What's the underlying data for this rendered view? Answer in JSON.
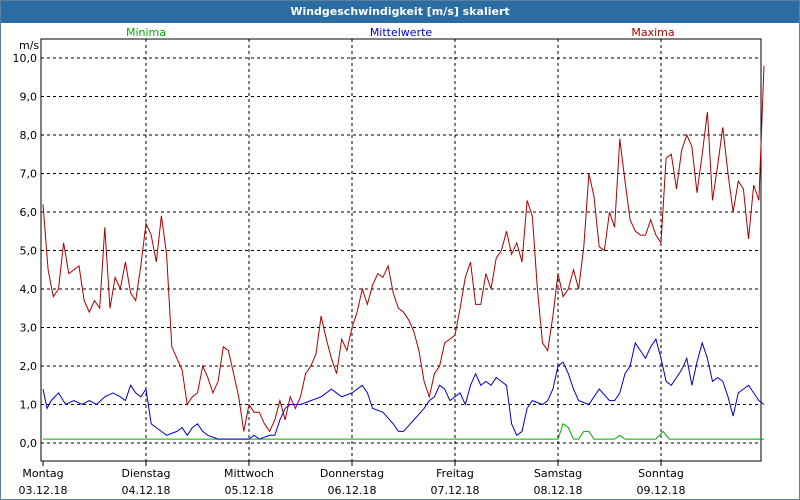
{
  "window": {
    "title": "Windgeschwindigkeit [m/s] skaliert"
  },
  "chart_data": {
    "type": "line",
    "ylabel": "m/s",
    "ylim": [
      0,
      10
    ],
    "yticks": [
      "0,0",
      "1,0",
      "2,0",
      "3,0",
      "4,0",
      "5,0",
      "6,0",
      "7,0",
      "8,0",
      "9,0",
      "10,0"
    ],
    "x_tick_labels": [
      {
        "day": "Montag",
        "date": "03.12.18"
      },
      {
        "day": "Dienstag",
        "date": "04.12.18"
      },
      {
        "day": "Mittwoch",
        "date": "05.12.18"
      },
      {
        "day": "Donnerstag",
        "date": "06.12.18"
      },
      {
        "day": "Freitag",
        "date": "07.12.18"
      },
      {
        "day": "Samstag",
        "date": "08.12.18"
      },
      {
        "day": "Sonntag",
        "date": "09.12.18"
      }
    ],
    "x_range_days": [
      0,
      7
    ],
    "grid": true,
    "legend_placement": "top",
    "series": [
      {
        "name": "Minima",
        "color": "#00aa00",
        "points": [
          [
            0,
            0.1
          ],
          [
            5.0,
            0.1
          ],
          [
            5.05,
            0.5
          ],
          [
            5.1,
            0.4
          ],
          [
            5.15,
            0.1
          ],
          [
            5.2,
            0.1
          ],
          [
            5.25,
            0.3
          ],
          [
            5.3,
            0.3
          ],
          [
            5.35,
            0.1
          ],
          [
            5.55,
            0.1
          ],
          [
            5.6,
            0.2
          ],
          [
            5.65,
            0.1
          ],
          [
            5.95,
            0.1
          ],
          [
            6.02,
            0.3
          ],
          [
            6.08,
            0.1
          ],
          [
            7,
            0.1
          ]
        ]
      },
      {
        "name": "Mittelwerte",
        "color": "#0000cc",
        "points": [
          [
            0,
            1.4
          ],
          [
            0.04,
            0.9
          ],
          [
            0.08,
            1.1
          ],
          [
            0.15,
            1.3
          ],
          [
            0.22,
            1.0
          ],
          [
            0.3,
            1.1
          ],
          [
            0.38,
            1.0
          ],
          [
            0.45,
            1.1
          ],
          [
            0.52,
            1.0
          ],
          [
            0.6,
            1.2
          ],
          [
            0.68,
            1.3
          ],
          [
            0.75,
            1.2
          ],
          [
            0.8,
            1.1
          ],
          [
            0.85,
            1.5
          ],
          [
            0.9,
            1.3
          ],
          [
            0.95,
            1.2
          ],
          [
            1.0,
            1.4
          ],
          [
            1.05,
            0.5
          ],
          [
            1.1,
            0.4
          ],
          [
            1.15,
            0.3
          ],
          [
            1.2,
            0.2
          ],
          [
            1.3,
            0.3
          ],
          [
            1.35,
            0.4
          ],
          [
            1.4,
            0.2
          ],
          [
            1.45,
            0.4
          ],
          [
            1.5,
            0.5
          ],
          [
            1.55,
            0.3
          ],
          [
            1.6,
            0.2
          ],
          [
            1.7,
            0.1
          ],
          [
            2.0,
            0.1
          ],
          [
            2.05,
            0.2
          ],
          [
            2.1,
            0.1
          ],
          [
            2.2,
            0.2
          ],
          [
            2.25,
            0.2
          ],
          [
            2.3,
            0.6
          ],
          [
            2.35,
            0.9
          ],
          [
            2.4,
            1.0
          ],
          [
            2.5,
            1.0
          ],
          [
            2.6,
            1.1
          ],
          [
            2.7,
            1.2
          ],
          [
            2.8,
            1.4
          ],
          [
            2.9,
            1.2
          ],
          [
            3.0,
            1.3
          ],
          [
            3.05,
            1.4
          ],
          [
            3.1,
            1.5
          ],
          [
            3.15,
            1.3
          ],
          [
            3.2,
            0.9
          ],
          [
            3.3,
            0.8
          ],
          [
            3.4,
            0.5
          ],
          [
            3.45,
            0.3
          ],
          [
            3.5,
            0.3
          ],
          [
            3.6,
            0.6
          ],
          [
            3.7,
            0.9
          ],
          [
            3.75,
            1.1
          ],
          [
            3.8,
            1.2
          ],
          [
            3.85,
            1.5
          ],
          [
            3.9,
            1.4
          ],
          [
            3.95,
            1.1
          ],
          [
            4.0,
            1.2
          ],
          [
            4.05,
            1.3
          ],
          [
            4.1,
            1.0
          ],
          [
            4.15,
            1.5
          ],
          [
            4.2,
            1.8
          ],
          [
            4.25,
            1.5
          ],
          [
            4.3,
            1.6
          ],
          [
            4.35,
            1.5
          ],
          [
            4.4,
            1.7
          ],
          [
            4.45,
            1.6
          ],
          [
            4.5,
            1.5
          ],
          [
            4.55,
            0.5
          ],
          [
            4.6,
            0.2
          ],
          [
            4.65,
            0.3
          ],
          [
            4.7,
            0.9
          ],
          [
            4.75,
            1.1
          ],
          [
            4.85,
            1.0
          ],
          [
            4.9,
            1.1
          ],
          [
            4.95,
            1.4
          ],
          [
            5.0,
            2.0
          ],
          [
            5.05,
            2.1
          ],
          [
            5.1,
            1.8
          ],
          [
            5.15,
            1.4
          ],
          [
            5.2,
            1.1
          ],
          [
            5.3,
            1.0
          ],
          [
            5.35,
            1.2
          ],
          [
            5.4,
            1.4
          ],
          [
            5.5,
            1.1
          ],
          [
            5.55,
            1.1
          ],
          [
            5.6,
            1.3
          ],
          [
            5.65,
            1.8
          ],
          [
            5.7,
            2.0
          ],
          [
            5.75,
            2.6
          ],
          [
            5.8,
            2.4
          ],
          [
            5.85,
            2.2
          ],
          [
            5.9,
            2.5
          ],
          [
            5.95,
            2.7
          ],
          [
            6.0,
            2.2
          ],
          [
            6.05,
            1.6
          ],
          [
            6.1,
            1.5
          ],
          [
            6.15,
            1.7
          ],
          [
            6.2,
            1.9
          ],
          [
            6.25,
            2.2
          ],
          [
            6.3,
            1.5
          ],
          [
            6.35,
            2.1
          ],
          [
            6.4,
            2.6
          ],
          [
            6.45,
            2.2
          ],
          [
            6.5,
            1.6
          ],
          [
            6.55,
            1.7
          ],
          [
            6.6,
            1.6
          ],
          [
            6.65,
            1.2
          ],
          [
            6.7,
            0.7
          ],
          [
            6.75,
            1.3
          ],
          [
            6.8,
            1.4
          ],
          [
            6.85,
            1.5
          ],
          [
            6.9,
            1.3
          ],
          [
            6.95,
            1.1
          ],
          [
            7.0,
            1.0
          ]
        ]
      },
      {
        "name": "Maxima",
        "color": "#aa0000",
        "points": [
          [
            0,
            6.2
          ],
          [
            0.05,
            4.5
          ],
          [
            0.1,
            3.8
          ],
          [
            0.15,
            4.0
          ],
          [
            0.2,
            5.2
          ],
          [
            0.25,
            4.4
          ],
          [
            0.3,
            4.5
          ],
          [
            0.35,
            4.6
          ],
          [
            0.4,
            3.7
          ],
          [
            0.45,
            3.4
          ],
          [
            0.5,
            3.7
          ],
          [
            0.55,
            3.5
          ],
          [
            0.6,
            5.6
          ],
          [
            0.65,
            3.5
          ],
          [
            0.7,
            4.3
          ],
          [
            0.75,
            4.0
          ],
          [
            0.8,
            4.7
          ],
          [
            0.85,
            3.9
          ],
          [
            0.9,
            3.7
          ],
          [
            0.95,
            4.6
          ],
          [
            1.0,
            5.7
          ],
          [
            1.05,
            5.4
          ],
          [
            1.1,
            4.7
          ],
          [
            1.15,
            5.9
          ],
          [
            1.2,
            4.9
          ],
          [
            1.25,
            2.5
          ],
          [
            1.3,
            2.2
          ],
          [
            1.35,
            1.9
          ],
          [
            1.4,
            1.0
          ],
          [
            1.45,
            1.2
          ],
          [
            1.5,
            1.3
          ],
          [
            1.55,
            2.0
          ],
          [
            1.6,
            1.7
          ],
          [
            1.65,
            1.3
          ],
          [
            1.7,
            1.6
          ],
          [
            1.75,
            2.5
          ],
          [
            1.8,
            2.4
          ],
          [
            1.85,
            1.8
          ],
          [
            1.9,
            1.2
          ],
          [
            1.95,
            0.3
          ],
          [
            2.0,
            1.0
          ],
          [
            2.05,
            0.8
          ],
          [
            2.1,
            0.8
          ],
          [
            2.15,
            0.5
          ],
          [
            2.2,
            0.3
          ],
          [
            2.25,
            0.6
          ],
          [
            2.3,
            1.1
          ],
          [
            2.35,
            0.6
          ],
          [
            2.4,
            1.2
          ],
          [
            2.45,
            0.9
          ],
          [
            2.5,
            1.2
          ],
          [
            2.55,
            1.8
          ],
          [
            2.6,
            2.0
          ],
          [
            2.65,
            2.3
          ],
          [
            2.7,
            3.3
          ],
          [
            2.75,
            2.7
          ],
          [
            2.8,
            2.2
          ],
          [
            2.85,
            1.8
          ],
          [
            2.9,
            2.7
          ],
          [
            2.95,
            2.4
          ],
          [
            3.0,
            3.0
          ],
          [
            3.05,
            3.4
          ],
          [
            3.1,
            4.0
          ],
          [
            3.15,
            3.6
          ],
          [
            3.2,
            4.1
          ],
          [
            3.25,
            4.4
          ],
          [
            3.3,
            4.3
          ],
          [
            3.35,
            4.6
          ],
          [
            3.4,
            3.9
          ],
          [
            3.45,
            3.5
          ],
          [
            3.5,
            3.4
          ],
          [
            3.55,
            3.2
          ],
          [
            3.6,
            2.9
          ],
          [
            3.65,
            2.4
          ],
          [
            3.7,
            1.6
          ],
          [
            3.75,
            1.2
          ],
          [
            3.8,
            1.8
          ],
          [
            3.85,
            2.0
          ],
          [
            3.9,
            2.6
          ],
          [
            3.95,
            2.7
          ],
          [
            4.0,
            2.8
          ],
          [
            4.05,
            3.5
          ],
          [
            4.1,
            4.3
          ],
          [
            4.15,
            4.7
          ],
          [
            4.2,
            3.6
          ],
          [
            4.25,
            3.6
          ],
          [
            4.3,
            4.4
          ],
          [
            4.35,
            4.0
          ],
          [
            4.4,
            4.8
          ],
          [
            4.45,
            5.0
          ],
          [
            4.5,
            5.5
          ],
          [
            4.55,
            4.9
          ],
          [
            4.6,
            5.2
          ],
          [
            4.65,
            4.7
          ],
          [
            4.7,
            6.3
          ],
          [
            4.75,
            5.9
          ],
          [
            4.8,
            4.0
          ],
          [
            4.85,
            2.6
          ],
          [
            4.9,
            2.4
          ],
          [
            4.95,
            3.3
          ],
          [
            5.0,
            4.4
          ],
          [
            5.05,
            3.8
          ],
          [
            5.1,
            4.0
          ],
          [
            5.15,
            4.5
          ],
          [
            5.2,
            4.0
          ],
          [
            5.25,
            5.1
          ],
          [
            5.3,
            7.0
          ],
          [
            5.35,
            6.4
          ],
          [
            5.4,
            5.1
          ],
          [
            5.45,
            5.0
          ],
          [
            5.5,
            6.0
          ],
          [
            5.55,
            5.6
          ],
          [
            5.6,
            7.9
          ],
          [
            5.65,
            6.8
          ],
          [
            5.7,
            5.8
          ],
          [
            5.75,
            5.5
          ],
          [
            5.8,
            5.4
          ],
          [
            5.85,
            5.4
          ],
          [
            5.9,
            5.8
          ],
          [
            5.95,
            5.4
          ],
          [
            6.0,
            5.2
          ],
          [
            6.05,
            7.4
          ],
          [
            6.1,
            7.5
          ],
          [
            6.15,
            6.6
          ],
          [
            6.2,
            7.6
          ],
          [
            6.25,
            8.0
          ],
          [
            6.3,
            7.7
          ],
          [
            6.35,
            6.5
          ],
          [
            6.4,
            7.5
          ],
          [
            6.45,
            8.6
          ],
          [
            6.5,
            6.3
          ],
          [
            6.55,
            7.2
          ],
          [
            6.6,
            8.2
          ],
          [
            6.65,
            7.0
          ],
          [
            6.7,
            6.0
          ],
          [
            6.75,
            6.8
          ],
          [
            6.8,
            6.6
          ],
          [
            6.85,
            5.3
          ],
          [
            6.9,
            6.7
          ],
          [
            6.95,
            6.3
          ],
          [
            7.0,
            9.8
          ]
        ]
      }
    ]
  }
}
